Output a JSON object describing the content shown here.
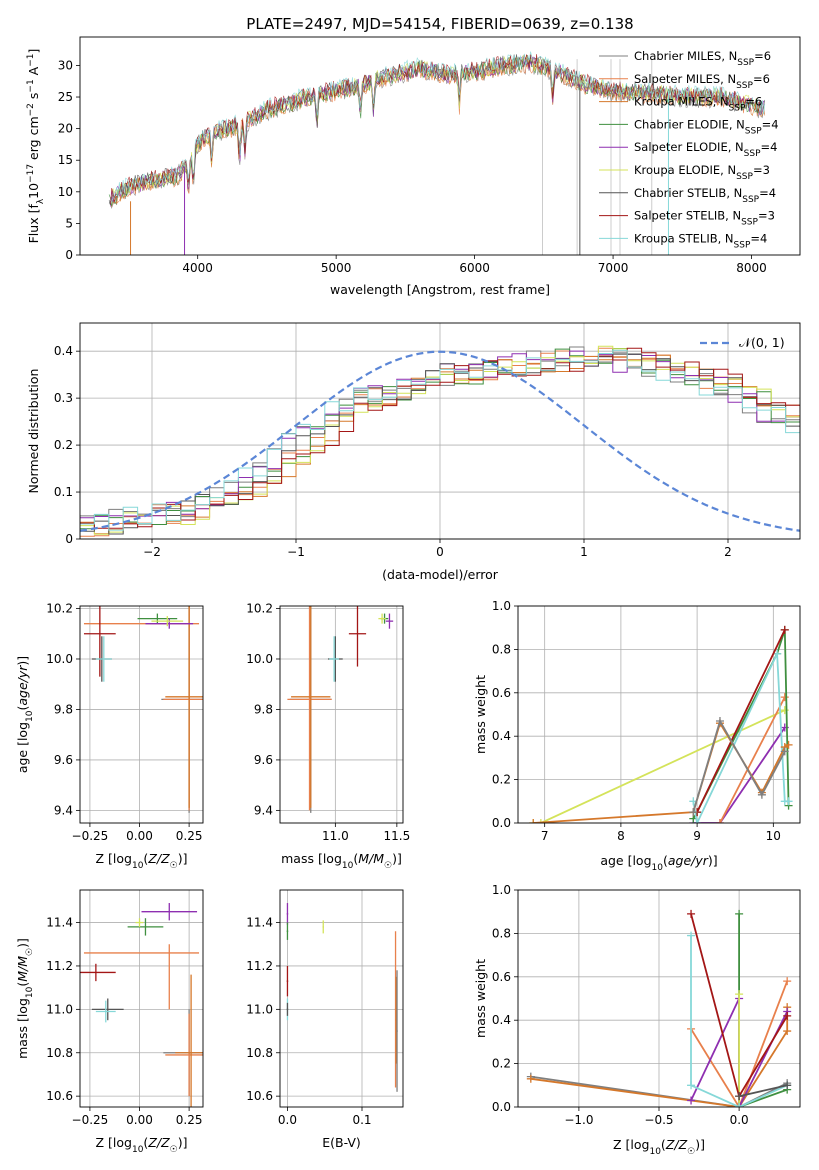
{
  "figure": {
    "title": "PLATE=2497, MJD=54154, FIBERID=0639, z=0.138"
  },
  "colors": {
    "Chabrier MILES": "#7f7f7f",
    "Salpeter MILES": "#e8804c",
    "Kroupa MILES": "#d5782b",
    "Chabrier ELODIE": "#3f8f3f",
    "Salpeter ELODIE": "#8e2fb0",
    "Kroupa ELODIE": "#d4e35a",
    "Chabrier STELIB": "#555555",
    "Salpeter STELIB": "#a31616",
    "Kroupa STELIB": "#86d8d8",
    "gaussian": "#5b86d6",
    "grid": "#b0b0b0"
  },
  "chart_data": [
    {
      "id": "spectrum",
      "type": "line",
      "xlabel": "wavelength [Angstrom, rest frame]",
      "ylabel": "Flux [fλ10−17 erg cm−2 s−1 A−1]",
      "xlim": [
        3150,
        8350
      ],
      "ylim": [
        0,
        34.5
      ],
      "xticks": [
        4000,
        5000,
        6000,
        7000,
        8000
      ],
      "yticks": [
        0,
        5,
        10,
        15,
        20,
        25,
        30
      ],
      "grid": false,
      "legend_placement": "right",
      "legend": [
        {
          "name": "Chabrier MILES",
          "label": "Chabrier MILES, NSSP=6"
        },
        {
          "name": "Salpeter MILES",
          "label": "Salpeter MILES, NSSP=6"
        },
        {
          "name": "Kroupa MILES",
          "label": "Kroupa MILES, NSSP=6"
        },
        {
          "name": "Chabrier ELODIE",
          "label": "Chabrier ELODIE, NSSP=4"
        },
        {
          "name": "Salpeter ELODIE",
          "label": "Salpeter ELODIE, NSSP=4"
        },
        {
          "name": "Kroupa ELODIE",
          "label": "Kroupa ELODIE, NSSP=3"
        },
        {
          "name": "Chabrier STELIB",
          "label": "Chabrier STELIB, NSSP=4"
        },
        {
          "name": "Salpeter STELIB",
          "label": "Salpeter STELIB, NSSP=3"
        },
        {
          "name": "Kroupa STELIB",
          "label": "Kroupa STELIB, NSSP=4"
        }
      ],
      "continuum": [
        [
          3350,
          8.5
        ],
        [
          3500,
          10.8
        ],
        [
          3700,
          12
        ],
        [
          3850,
          12.5
        ],
        [
          3950,
          15
        ],
        [
          4000,
          17.5
        ],
        [
          4100,
          19.5
        ],
        [
          4300,
          20.5
        ],
        [
          4500,
          23
        ],
        [
          4800,
          25
        ],
        [
          5000,
          26
        ],
        [
          5200,
          27
        ],
        [
          5400,
          28.5
        ],
        [
          5600,
          29.5
        ],
        [
          5800,
          28.5
        ],
        [
          6000,
          29
        ],
        [
          6200,
          30
        ],
        [
          6400,
          30.5
        ],
        [
          6600,
          29
        ],
        [
          6800,
          27
        ],
        [
          7000,
          26
        ],
        [
          7300,
          25.5
        ],
        [
          7600,
          25
        ],
        [
          7800,
          25
        ],
        [
          8100,
          23
        ]
      ],
      "dips": [
        {
          "x": 3515,
          "from": 0,
          "to": 8.5
        },
        {
          "x": 3905,
          "from": 0,
          "to": 14
        },
        {
          "x": 6760,
          "from": 0,
          "to": 27
        },
        {
          "x": 7400,
          "from": 0,
          "to": 26
        }
      ],
      "vlines": [
        6490,
        6740,
        6985,
        7050,
        7280
      ]
    },
    {
      "id": "residuals",
      "type": "area",
      "xlabel": "(data-model)/error",
      "ylabel": "Normed distribution",
      "xlim": [
        -2.5,
        2.5
      ],
      "ylim": [
        0,
        0.46
      ],
      "xticks": [
        -2,
        -1,
        0,
        1,
        2
      ],
      "yticks": [
        0,
        0.1,
        0.2,
        0.3,
        0.4
      ],
      "grid": true,
      "legend_placement": "top-right",
      "legend": [
        {
          "name": "gaussian",
          "label": "𝒩(0, 1)"
        }
      ],
      "bin_width": 0.1,
      "base_hist": [
        0.03,
        0.035,
        0.04,
        0.045,
        0.05,
        0.055,
        0.06,
        0.07,
        0.08,
        0.095,
        0.11,
        0.13,
        0.15,
        0.17,
        0.2,
        0.22,
        0.25,
        0.27,
        0.29,
        0.3,
        0.31,
        0.32,
        0.33,
        0.34,
        0.35,
        0.35,
        0.355,
        0.36,
        0.365,
        0.37,
        0.37,
        0.38,
        0.38,
        0.385,
        0.39,
        0.39,
        0.385,
        0.38,
        0.375,
        0.37,
        0.36,
        0.35,
        0.34,
        0.33,
        0.32,
        0.3,
        0.29,
        0.27,
        0.26,
        0.24,
        0.22,
        0.2,
        0.18,
        0.165,
        0.15,
        0.14,
        0.125,
        0.11,
        0.1,
        0.09,
        0.08,
        0.07,
        0.06,
        0.055,
        0.05,
        0.045,
        0.04,
        0.035,
        0.03,
        0.028
      ],
      "hist_start": -2.5
    },
    {
      "id": "age-vs-Z",
      "type": "scatter",
      "xlabel": "Z [log10(Z/Z☉)]",
      "ylabel": "age  [log10(age/yr)]",
      "xlim": [
        -0.3,
        0.32
      ],
      "ylim": [
        9.35,
        10.21
      ],
      "xticks": [
        -0.25,
        0,
        0.25
      ],
      "xticklabels": [
        "−0.25",
        "0.00",
        "0.25"
      ],
      "yticks": [
        9.4,
        9.6,
        9.8,
        10.0,
        10.2
      ],
      "yticklabels": [
        "9.4",
        "9.6",
        "9.8",
        "10.0",
        "10.2"
      ],
      "grid": true,
      "points": [
        {
          "s": "Chabrier MILES",
          "x": 0.25,
          "y": 9.84,
          "ex": 0.14,
          "ey": 0.45
        },
        {
          "s": "Salpeter MILES",
          "x": 0.25,
          "y": 9.84,
          "ex": 0.13,
          "ey": 0.44
        },
        {
          "s": "Kroupa MILES",
          "x": 0.25,
          "y": 9.85,
          "ex": 0.12,
          "ey": 0.44
        },
        {
          "s": "Chabrier ELODIE",
          "x": 0.09,
          "y": 10.16,
          "ex": 0.1,
          "ey": 0.02
        },
        {
          "s": "Salpeter ELODIE",
          "x": 0.15,
          "y": 10.14,
          "ex": 0.12,
          "ey": 0.02
        },
        {
          "s": "Kroupa ELODIE",
          "x": 0.14,
          "y": 10.15,
          "ex": 0.08,
          "ey": 0.02
        },
        {
          "s": "Chabrier STELIB",
          "x": -0.19,
          "y": 10.0,
          "ex": 0.05,
          "ey": 0.09
        },
        {
          "s": "Salpeter STELIB",
          "x": -0.2,
          "y": 10.1,
          "ex": 0.08,
          "ey": 0.17
        },
        {
          "s": "Kroupa STELIB",
          "x": -0.18,
          "y": 10.0,
          "ex": 0.04,
          "ey": 0.09
        }
      ],
      "extra_segments": [
        {
          "s": "Salpeter MILES",
          "x0": -0.28,
          "x1": 0.3,
          "y0": 10.14,
          "y1": 10.14
        }
      ]
    },
    {
      "id": "age-vs-mass",
      "type": "scatter",
      "xlabel": "mass [log10(M/M☉)]",
      "ylabel": "",
      "xlim": [
        10.55,
        11.55
      ],
      "ylim": [
        9.35,
        10.21
      ],
      "xticks": [
        11.0,
        11.5
      ],
      "xticklabels": [
        "11.0",
        "11.5"
      ],
      "yticks": [
        9.4,
        9.6,
        9.8,
        10.0,
        10.2
      ],
      "yticklabels": [
        "9.4",
        "9.6",
        "9.8",
        "10.0",
        "10.2"
      ],
      "grid": true,
      "points": [
        {
          "s": "Chabrier MILES",
          "x": 10.8,
          "y": 9.84,
          "ex": 0.17,
          "ey": 0.45
        },
        {
          "s": "Salpeter MILES",
          "x": 10.79,
          "y": 9.84,
          "ex": 0.18,
          "ey": 0.44
        },
        {
          "s": "Kroupa MILES",
          "x": 10.8,
          "y": 9.85,
          "ex": 0.16,
          "ey": 0.44
        },
        {
          "s": "Chabrier ELODIE",
          "x": 11.4,
          "y": 10.16,
          "ex": 0.03,
          "ey": 0.02
        },
        {
          "s": "Salpeter ELODIE",
          "x": 11.44,
          "y": 10.15,
          "ex": 0.03,
          "ey": 0.03
        },
        {
          "s": "Kroupa ELODIE",
          "x": 11.38,
          "y": 10.16,
          "ex": 0.03,
          "ey": 0.02
        },
        {
          "s": "Chabrier STELIB",
          "x": 11.0,
          "y": 10.0,
          "ex": 0.06,
          "ey": 0.09
        },
        {
          "s": "Salpeter STELIB",
          "x": 11.18,
          "y": 10.1,
          "ex": 0.07,
          "ey": 0.13
        },
        {
          "s": "Kroupa STELIB",
          "x": 10.99,
          "y": 10.0,
          "ex": 0.04,
          "ey": 0.09
        }
      ]
    },
    {
      "id": "weight-vs-age",
      "type": "line",
      "xlabel": "age  [log10(age/yr)]",
      "ylabel": "mass weight",
      "xlim": [
        6.65,
        10.35
      ],
      "ylim": [
        0,
        1.0
      ],
      "xticks": [
        7,
        8,
        9,
        10
      ],
      "yticks": [
        0,
        0.2,
        0.4,
        0.6,
        0.8,
        1.0
      ],
      "yticklabels": [
        "0.0",
        "0.2",
        "0.4",
        "0.6",
        "0.8",
        "1.0"
      ],
      "grid": true,
      "series": [
        {
          "name": "Kroupa ELODIE",
          "x": [
            6.85,
            6.95,
            10.15
          ],
          "y": [
            0.0,
            0.0,
            0.52
          ]
        },
        {
          "name": "Salpeter ELODIE",
          "x": [
            8.95,
            9.3,
            10.15
          ],
          "y": [
            0.0,
            0.0,
            0.44
          ]
        },
        {
          "name": "Salpeter MILES",
          "x": [
            9.3,
            10.15
          ],
          "y": [
            0.0,
            0.58
          ]
        },
        {
          "name": "Chabrier ELODIE",
          "x": [
            8.95,
            9.0,
            10.05,
            10.15,
            10.2
          ],
          "y": [
            0.02,
            0.05,
            0.78,
            0.89,
            0.08
          ]
        },
        {
          "name": "Kroupa STELIB",
          "x": [
            8.95,
            9.0,
            10.05,
            10.15,
            10.2
          ],
          "y": [
            0.1,
            0.0,
            0.78,
            0.1,
            0.1
          ]
        },
        {
          "name": "Salpeter STELIB",
          "x": [
            9.0,
            10.15
          ],
          "y": [
            0.05,
            0.89
          ]
        },
        {
          "name": "Kroupa MILES",
          "x": [
            6.85,
            8.95,
            9.3,
            9.85,
            10.15,
            10.2
          ],
          "y": [
            0.0,
            0.05,
            0.46,
            0.14,
            0.35,
            0.36
          ]
        },
        {
          "name": "Chabrier MILES",
          "x": [
            8.95,
            9.3,
            9.85,
            10.15
          ],
          "y": [
            0.05,
            0.47,
            0.13,
            0.33
          ]
        }
      ]
    },
    {
      "id": "mass-vs-Z",
      "type": "scatter",
      "xlabel": "Z [log10(Z/Z☉)]",
      "ylabel": "mass [log10(M/M☉)]",
      "xlim": [
        -0.3,
        0.32
      ],
      "ylim": [
        10.55,
        11.55
      ],
      "xticks": [
        -0.25,
        0,
        0.25
      ],
      "xticklabels": [
        "−0.25",
        "0.00",
        "0.25"
      ],
      "yticks": [
        10.6,
        10.8,
        11.0,
        11.2,
        11.4
      ],
      "yticklabels": [
        "10.6",
        "10.8",
        "11.0",
        "11.2",
        "11.4"
      ],
      "grid": true,
      "points": [
        {
          "s": "Chabrier MILES",
          "x": 0.25,
          "y": 10.8,
          "ex": 0.13,
          "ey": 0.2
        },
        {
          "s": "Salpeter MILES",
          "x": 0.25,
          "y": 10.79,
          "ex": 0.12,
          "ey": 0.19
        },
        {
          "s": "Kroupa MILES",
          "x": 0.26,
          "y": 10.8,
          "ex": 0.08,
          "ey": 0.36
        },
        {
          "s": "Chabrier ELODIE",
          "x": 0.03,
          "y": 11.38,
          "ex": 0.09,
          "ey": 0.04
        },
        {
          "s": "Salpeter ELODIE",
          "x": 0.15,
          "y": 11.45,
          "ex": 0.14,
          "ey": 0.04
        },
        {
          "s": "Kroupa ELODIE",
          "x": -0.0,
          "y": 11.4,
          "ex": 0.02,
          "ey": 0.02
        },
        {
          "s": "Chabrier STELIB",
          "x": -0.16,
          "y": 11.0,
          "ex": 0.08,
          "ey": 0.05
        },
        {
          "s": "Salpeter STELIB",
          "x": -0.22,
          "y": 11.17,
          "ex": 0.1,
          "ey": 0.04
        },
        {
          "s": "Kroupa STELIB",
          "x": -0.17,
          "y": 10.99,
          "ex": 0.05,
          "ey": 0.05
        }
      ],
      "extra_segments": [
        {
          "s": "Salpeter MILES",
          "x0": -0.28,
          "x1": 0.3,
          "y0": 11.26,
          "y1": 11.26
        },
        {
          "s": "Salpeter MILES",
          "x0": 0.15,
          "x1": 0.15,
          "y0": 11.0,
          "y1": 11.3
        }
      ]
    },
    {
      "id": "mass-vs-ebv",
      "type": "scatter",
      "xlabel": "E(B-V)",
      "ylabel": "",
      "xlim": [
        -0.01,
        0.155
      ],
      "ylim": [
        10.55,
        11.55
      ],
      "xticks": [
        0.0,
        0.1
      ],
      "xticklabels": [
        "0.0",
        "0.1"
      ],
      "yticks": [
        10.6,
        10.8,
        11.0,
        11.2,
        11.4
      ],
      "yticklabels": [
        "10.6",
        "10.8",
        "11.0",
        "11.2",
        "11.4"
      ],
      "grid": true,
      "points": [
        {
          "s": "Salpeter MILES",
          "x": 0.145,
          "y": 11.0,
          "ex": 0.001,
          "ey": 0.36
        },
        {
          "s": "Kroupa MILES",
          "x": 0.146,
          "y": 10.95,
          "ex": 0.001,
          "ey": 0.2
        },
        {
          "s": "Chabrier MILES",
          "x": 0.147,
          "y": 10.9,
          "ex": 0.001,
          "ey": 0.28
        },
        {
          "s": "Salpeter ELODIE",
          "x": 0.0,
          "y": 11.44,
          "ex": 0.001,
          "ey": 0.05
        },
        {
          "s": "Chabrier ELODIE",
          "x": 0.0,
          "y": 11.36,
          "ex": 0.001,
          "ey": 0.04
        },
        {
          "s": "Kroupa ELODIE",
          "x": 0.048,
          "y": 11.38,
          "ex": 0.001,
          "ey": 0.03
        },
        {
          "s": "Salpeter STELIB",
          "x": 0.0,
          "y": 11.13,
          "ex": 0.001,
          "ey": 0.07
        },
        {
          "s": "Kroupa STELIB",
          "x": 0.0,
          "y": 11.0,
          "ex": 0.001,
          "ey": 0.05
        },
        {
          "s": "Chabrier STELIB",
          "x": 0.0,
          "y": 11.0,
          "ex": 0.001,
          "ey": 0.03
        }
      ]
    },
    {
      "id": "weight-vs-Z",
      "type": "line",
      "xlabel": "Z [log10(Z/Z☉)]",
      "ylabel": "mass weight",
      "xlim": [
        -1.38,
        0.38
      ],
      "ylim": [
        0,
        1.0
      ],
      "xticks": [
        -1.0,
        -0.5,
        0.0
      ],
      "xticklabels": [
        "−1.0",
        "−0.5",
        "0.0"
      ],
      "yticks": [
        0,
        0.2,
        0.4,
        0.6,
        0.8,
        1.0
      ],
      "yticklabels": [
        "0.0",
        "0.2",
        "0.4",
        "0.6",
        "0.8",
        "1.0"
      ],
      "grid": true,
      "series": [
        {
          "name": "Chabrier MILES",
          "x": [
            -1.3,
            0.0,
            0.3
          ],
          "y": [
            0.14,
            0.0,
            0.11
          ]
        },
        {
          "name": "Kroupa MILES",
          "x": [
            -1.3,
            0.0,
            0.3,
            0.3
          ],
          "y": [
            0.13,
            0.0,
            0.35,
            0.46
          ]
        },
        {
          "name": "Salpeter MILES",
          "x": [
            -0.3,
            0.0,
            0.3
          ],
          "y": [
            0.36,
            0.0,
            0.58
          ]
        },
        {
          "name": "Chabrier ELODIE",
          "x": [
            0.0,
            0.0,
            0.3
          ],
          "y": [
            0.89,
            0.0,
            0.08
          ]
        },
        {
          "name": "Salpeter ELODIE",
          "x": [
            -0.3,
            0.0,
            0.0,
            0.3
          ],
          "y": [
            0.03,
            0.5,
            0.0,
            0.44
          ]
        },
        {
          "name": "Kroupa ELODIE",
          "x": [
            0.0,
            0.0
          ],
          "y": [
            0.0,
            0.52
          ]
        },
        {
          "name": "Salpeter STELIB",
          "x": [
            -0.3,
            0.0,
            0.3
          ],
          "y": [
            0.89,
            0.05,
            0.42
          ]
        },
        {
          "name": "Kroupa STELIB",
          "x": [
            -0.3,
            -0.3,
            0.0,
            0.3
          ],
          "y": [
            0.79,
            0.1,
            0.0,
            0.1
          ]
        },
        {
          "name": "Chabrier STELIB",
          "x": [
            0.0,
            0.3
          ],
          "y": [
            0.05,
            0.1
          ]
        }
      ]
    }
  ]
}
